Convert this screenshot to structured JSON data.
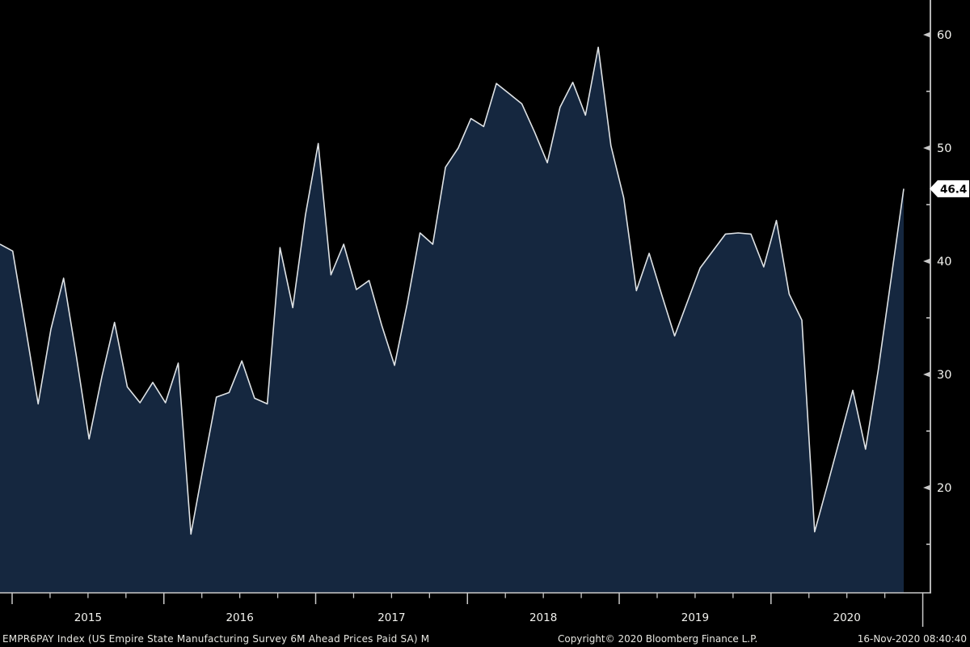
{
  "chart_data": {
    "type": "area",
    "title": "",
    "series_name": "EMPR6PAY Index (US Empire State Manufacturing Survey 6M Ahead Prices Paid SA)",
    "frequency": "M",
    "x": [
      "2014-12",
      "2015-01",
      "2015-02",
      "2015-03",
      "2015-04",
      "2015-05",
      "2015-06",
      "2015-07",
      "2015-08",
      "2015-09",
      "2015-10",
      "2015-11",
      "2015-12",
      "2016-01",
      "2016-02",
      "2016-03",
      "2016-04",
      "2016-05",
      "2016-06",
      "2016-07",
      "2016-08",
      "2016-09",
      "2016-10",
      "2016-11",
      "2016-12",
      "2017-01",
      "2017-02",
      "2017-03",
      "2017-04",
      "2017-05",
      "2017-06",
      "2017-07",
      "2017-08",
      "2017-09",
      "2017-10",
      "2017-11",
      "2017-12",
      "2018-01",
      "2018-02",
      "2018-03",
      "2018-04",
      "2018-05",
      "2018-06",
      "2018-07",
      "2018-08",
      "2018-09",
      "2018-10",
      "2018-11",
      "2018-12",
      "2019-01",
      "2019-02",
      "2019-03",
      "2019-04",
      "2019-05",
      "2019-06",
      "2019-07",
      "2019-08",
      "2019-09",
      "2019-10",
      "2019-11",
      "2019-12",
      "2020-01",
      "2020-02",
      "2020-03",
      "2020-04",
      "2020-05",
      "2020-06",
      "2020-07",
      "2020-08",
      "2020-09",
      "2020-10",
      "2020-11"
    ],
    "values": [
      41.5,
      40.9,
      34.2,
      27.4,
      34.0,
      38.5,
      31.6,
      24.3,
      29.8,
      34.6,
      28.9,
      27.5,
      29.3,
      27.5,
      31.0,
      15.9,
      22.0,
      28.0,
      28.4,
      31.2,
      27.9,
      27.4,
      41.2,
      35.9,
      44.1,
      50.4,
      38.8,
      41.5,
      37.5,
      38.3,
      34.3,
      30.8,
      36.3,
      42.5,
      41.5,
      48.3,
      50.0,
      52.6,
      51.9,
      55.7,
      54.8,
      53.9,
      51.4,
      48.7,
      53.6,
      55.8,
      52.9,
      58.9,
      50.2,
      45.6,
      37.4,
      40.7,
      37.0,
      33.4,
      36.4,
      39.4,
      40.9,
      42.4,
      42.5,
      42.4,
      39.5,
      43.6,
      37.1,
      34.8,
      16.1,
      20.2,
      24.4,
      28.6,
      23.4,
      30.4,
      38.4,
      46.4
    ],
    "last_value": 46.4,
    "last_value_label": "46.4",
    "y_axis": {
      "side": "right",
      "major_ticks": [
        60,
        50,
        40,
        30,
        20
      ],
      "minor_ticks": [
        55,
        45,
        35,
        25,
        15
      ],
      "visible_range": [
        10.7,
        63.1
      ]
    },
    "x_axis": {
      "year_labels": [
        "2015",
        "2016",
        "2017",
        "2018",
        "2019",
        "2020"
      ],
      "minor_ticks_per_year": 4
    },
    "grid": false,
    "legend_position": "none"
  },
  "footer": {
    "left": "EMPR6PAY Index (US Empire State Manufacturing Survey 6M Ahead Prices Paid SA)  M",
    "center": "Copyright© 2020 Bloomberg Finance L.P.",
    "right": "16-Nov-2020 08:40:40"
  },
  "colors": {
    "background": "#000000",
    "area_fill": "#15273f",
    "series_line": "#dfe3e6",
    "axis": "#c9c9c9",
    "tick_label": "#f2f2ee",
    "tag_background": "#ffffff",
    "tag_text": "#000000",
    "footer_text": "#e6e6e0"
  }
}
